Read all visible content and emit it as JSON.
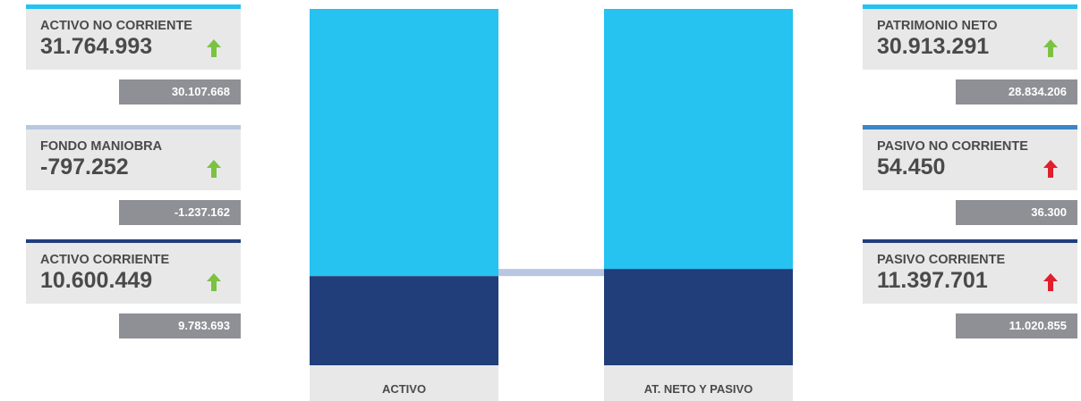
{
  "colors": {
    "accent_light_blue": "#26c2f0",
    "accent_navy": "#213e7a",
    "accent_grey_blue": "#b9c6e3",
    "accent_mid_blue": "#3a86c8",
    "arrow_up_good": "#7cc242",
    "arrow_up_bad": "#e0202c",
    "previous_value_bg": "#8e9095",
    "card_bg": "#e8e8e8"
  },
  "left_cards": [
    {
      "label": "ACTIVO NO CORRIENTE",
      "value": "31.764.993",
      "previous": "30.107.668",
      "arrow_icon": "arrow-up-icon",
      "arrow_color": "#7cc242",
      "top_border_color": "#26c2f0"
    },
    {
      "label": "FONDO MANIOBRA",
      "value": "-797.252",
      "previous": "-1.237.162",
      "arrow_icon": "arrow-up-icon",
      "arrow_color": "#7cc242",
      "top_border_color": "#b9c6e3"
    },
    {
      "label": "ACTIVO CORRIENTE",
      "value": "10.600.449",
      "previous": "9.783.693",
      "arrow_icon": "arrow-up-icon",
      "arrow_color": "#7cc242",
      "top_border_color": "#213e7a"
    }
  ],
  "right_cards": [
    {
      "label": "PATRIMONIO NETO",
      "value": "30.913.291",
      "previous": "28.834.206",
      "arrow_icon": "arrow-up-icon",
      "arrow_color": "#7cc242",
      "top_border_color": "#26c2f0"
    },
    {
      "label": "PASIVO NO CORRIENTE",
      "value": "54.450",
      "previous": "36.300",
      "arrow_icon": "arrow-up-icon",
      "arrow_color": "#e0202c",
      "top_border_color": "#3a86c8"
    },
    {
      "label": "PASIVO CORRIENTE",
      "value": "11.397.701",
      "previous": "11.020.855",
      "arrow_icon": "arrow-up-icon",
      "arrow_color": "#e0202c",
      "top_border_color": "#213e7a"
    }
  ],
  "chart_data": {
    "type": "bar",
    "stacked": true,
    "categories": [
      "ACTIVO",
      "AT. NETO Y PASIVO"
    ],
    "series": [
      {
        "key": "current",
        "color": "#213e7a",
        "values": [
          10600449,
          11452151
        ]
      },
      {
        "key": "non_current",
        "color": "#26c2f0",
        "values": [
          31764993,
          30913291
        ]
      }
    ],
    "working_capital": {
      "value": -797252,
      "color": "#b9c6e3"
    },
    "grid": false
  }
}
